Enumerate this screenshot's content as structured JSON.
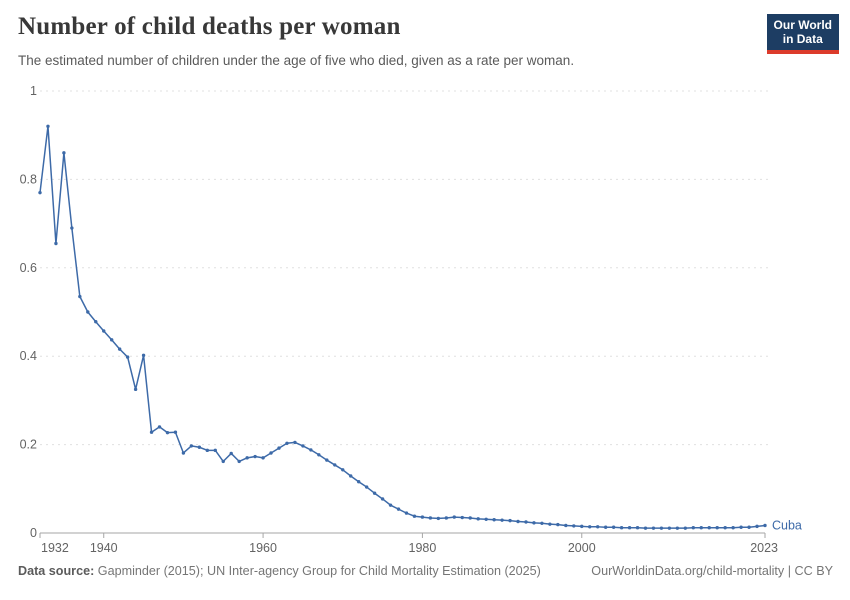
{
  "header": {
    "title": "Number of child deaths per woman",
    "subtitle": "The estimated number of children under the age of five who died, given as a rate per woman.",
    "logo": {
      "line1": "Our World",
      "line2": "in Data"
    }
  },
  "colors": {
    "line_blue": "#3d6aa8",
    "logo_navy": "#1d3d63",
    "logo_red": "#dc3b2b",
    "grid": "#e0e0e0",
    "axis": "#a6a6a6",
    "tick_text": "#636363"
  },
  "chart_data": {
    "type": "line",
    "title": "Number of child deaths per woman",
    "xlabel": "",
    "ylabel": "",
    "xlim": [
      1932,
      2023
    ],
    "ylim": [
      0,
      1
    ],
    "x_ticks": [
      1932,
      1940,
      1960,
      1980,
      2000,
      2023
    ],
    "y_ticks": [
      0,
      0.2,
      0.4,
      0.6,
      0.8,
      1
    ],
    "grid": "horizontal-dashed",
    "legend": "end-of-line-label",
    "series": [
      {
        "name": "Cuba",
        "color": "#3d6aa8",
        "years": [
          1932,
          1933,
          1934,
          1935,
          1936,
          1937,
          1938,
          1939,
          1940,
          1941,
          1942,
          1943,
          1944,
          1945,
          1946,
          1947,
          1948,
          1949,
          1950,
          1951,
          1952,
          1953,
          1954,
          1955,
          1956,
          1957,
          1958,
          1959,
          1960,
          1961,
          1962,
          1963,
          1964,
          1965,
          1966,
          1967,
          1968,
          1969,
          1970,
          1971,
          1972,
          1973,
          1974,
          1975,
          1976,
          1977,
          1978,
          1979,
          1980,
          1981,
          1982,
          1983,
          1984,
          1985,
          1986,
          1987,
          1988,
          1989,
          1990,
          1991,
          1992,
          1993,
          1994,
          1995,
          1996,
          1997,
          1998,
          1999,
          2000,
          2001,
          2002,
          2003,
          2004,
          2005,
          2006,
          2007,
          2008,
          2009,
          2010,
          2011,
          2012,
          2013,
          2014,
          2015,
          2016,
          2017,
          2018,
          2019,
          2020,
          2021,
          2022,
          2023
        ],
        "values": [
          0.77,
          0.92,
          0.655,
          0.86,
          0.69,
          0.535,
          0.5,
          0.478,
          0.457,
          0.437,
          0.416,
          0.398,
          0.325,
          0.402,
          0.228,
          0.24,
          0.227,
          0.228,
          0.181,
          0.197,
          0.194,
          0.187,
          0.187,
          0.162,
          0.18,
          0.162,
          0.17,
          0.173,
          0.17,
          0.181,
          0.192,
          0.203,
          0.205,
          0.197,
          0.188,
          0.177,
          0.165,
          0.154,
          0.143,
          0.129,
          0.116,
          0.104,
          0.09,
          0.077,
          0.063,
          0.054,
          0.045,
          0.038,
          0.036,
          0.034,
          0.033,
          0.034,
          0.036,
          0.035,
          0.034,
          0.032,
          0.031,
          0.03,
          0.029,
          0.028,
          0.026,
          0.025,
          0.023,
          0.022,
          0.02,
          0.019,
          0.017,
          0.016,
          0.015,
          0.014,
          0.014,
          0.013,
          0.013,
          0.012,
          0.012,
          0.012,
          0.011,
          0.011,
          0.011,
          0.011,
          0.011,
          0.011,
          0.012,
          0.012,
          0.012,
          0.012,
          0.012,
          0.012,
          0.013,
          0.013,
          0.015,
          0.017
        ]
      }
    ]
  },
  "footer": {
    "datasource_label": "Data source:",
    "datasource_text": " Gapminder (2015); UN Inter-agency Group for Child Mortality Estimation (2025)",
    "link_text": "OurWorldinData.org/child-mortality | CC BY"
  }
}
